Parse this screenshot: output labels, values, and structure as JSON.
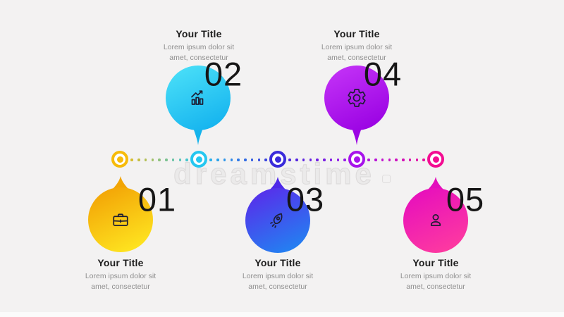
{
  "canvas": {
    "background": "#f3f2f2"
  },
  "watermark": {
    "text": "dreamstime"
  },
  "steps": [
    {
      "number": "01",
      "title": "Your Title",
      "desc_line1": "Lorem ipsum dolor sit",
      "desc_line2": "amet, consectetur",
      "icon": "briefcase-icon",
      "placement": "below-timeline",
      "gradient_start": "#F2A105",
      "gradient_end": "#FFE922",
      "tail_color": "#F2A504",
      "node_color": "#F6BB0A"
    },
    {
      "number": "02",
      "title": "Your Title",
      "desc_line1": "Lorem ipsum dolor sit",
      "desc_line2": "amet, consectetur",
      "icon": "growth-chart-icon",
      "placement": "above-timeline",
      "gradient_start": "#4BE0F8",
      "gradient_end": "#12B1EE",
      "tail_color": "#14B3EB",
      "node_color": "#25C7F0"
    },
    {
      "number": "03",
      "title": "Your Title",
      "desc_line1": "Lorem ipsum dolor sit",
      "desc_line2": "amet, consectetur",
      "icon": "rocket-icon",
      "placement": "below-timeline",
      "gradient_start": "#5A2AEA",
      "gradient_end": "#1F87F2",
      "tail_color": "#4E28E8",
      "node_color": "#3A2BDB"
    },
    {
      "number": "04",
      "title": "Your Title",
      "desc_line1": "Lorem ipsum dolor sit",
      "desc_line2": "amet, consectetur",
      "icon": "gear-icon",
      "placement": "above-timeline",
      "gradient_start": "#C433F7",
      "gradient_end": "#9800E2",
      "tail_color": "#9C04E4",
      "node_color": "#A713EB"
    },
    {
      "number": "05",
      "title": "Your Title",
      "desc_line1": "Lorem ipsum dolor sit",
      "desc_line2": "amet, consectetur",
      "icon": "user-icon",
      "placement": "below-timeline",
      "gradient_start": "#E60DBE",
      "gradient_end": "#FF3D9E",
      "tail_color": "#E30EBC",
      "node_color": "#F30D92"
    }
  ],
  "timeline": {
    "dots_per_segment": 9
  }
}
